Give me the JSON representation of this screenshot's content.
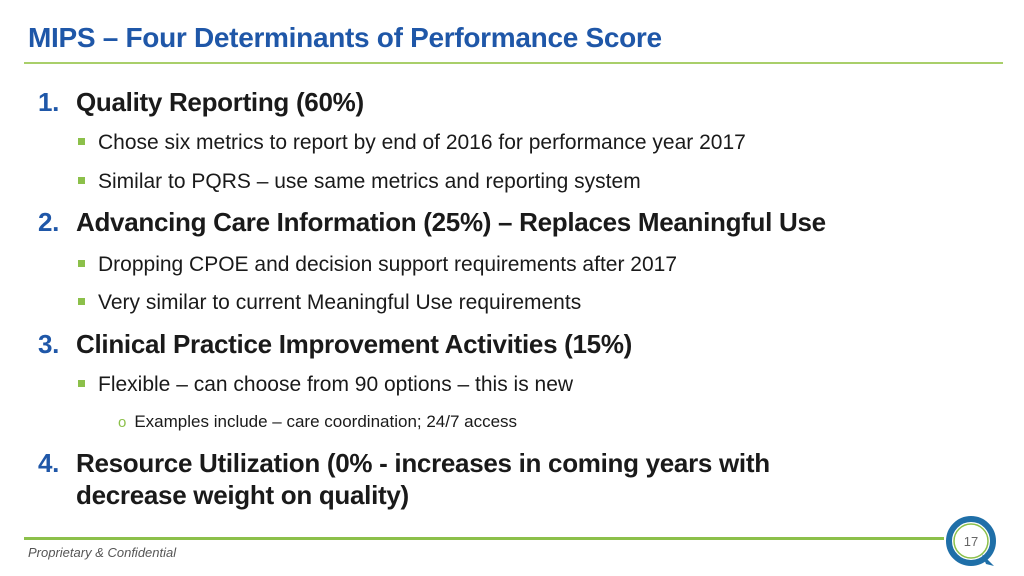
{
  "title": "MIPS – Four Determinants of Performance Score",
  "items": [
    {
      "number": "1.",
      "heading": "Quality Reporting (60%)",
      "bullets": [
        "Chose six metrics to report by end of 2016 for performance year 2017",
        "Similar to PQRS – use same metrics and reporting system"
      ]
    },
    {
      "number": "2.",
      "heading": "Advancing Care Information (25%) – Replaces Meaningful Use",
      "bullets": [
        "Dropping CPOE and decision support requirements after 2017",
        "Very similar to current Meaningful Use requirements"
      ]
    },
    {
      "number": "3.",
      "heading": "Clinical Practice Improvement Activities (15%)",
      "bullets": [
        "Flexible – can choose from 90 options – this is new"
      ],
      "sub_bullets": [
        "Examples include – care coordination; 24/7 access"
      ]
    },
    {
      "number": "4.",
      "heading_line1": "Resource Utilization (0% - increases in coming years with",
      "heading_line2": "decrease weight on quality)"
    }
  ],
  "footer": {
    "text": "Proprietary & Confidential",
    "page_number": "17"
  },
  "colors": {
    "accent_blue": "#1f57a8",
    "accent_green": "#8cc04a"
  }
}
